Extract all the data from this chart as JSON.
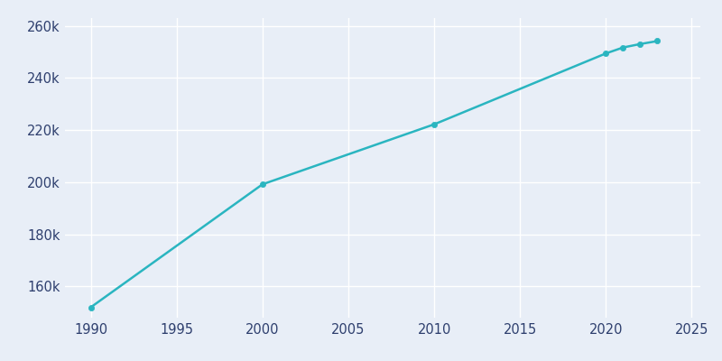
{
  "years": [
    1990,
    2000,
    2010,
    2020,
    2021,
    2022,
    2023
  ],
  "population": [
    151982,
    199184,
    222209,
    249422,
    251706,
    253032,
    254168
  ],
  "line_color": "#2AB5C0",
  "marker_color": "#2AB5C0",
  "fig_bg_color": "#E8EEF7",
  "axes_bg_color": "#E8EEF7",
  "grid_color": "#FFFFFF",
  "tick_color": "#2E3F6E",
  "xlim": [
    1988.5,
    2025.5
  ],
  "ylim": [
    148000,
    263000
  ],
  "xticks": [
    1990,
    1995,
    2000,
    2005,
    2010,
    2015,
    2020,
    2025
  ],
  "yticks": [
    160000,
    180000,
    200000,
    220000,
    240000,
    260000
  ],
  "ytick_labels": [
    "160k",
    "180k",
    "200k",
    "220k",
    "240k",
    "260k"
  ],
  "line_width": 1.8,
  "marker_size": 4.5,
  "marker_style": "o",
  "tick_fontsize": 10.5
}
